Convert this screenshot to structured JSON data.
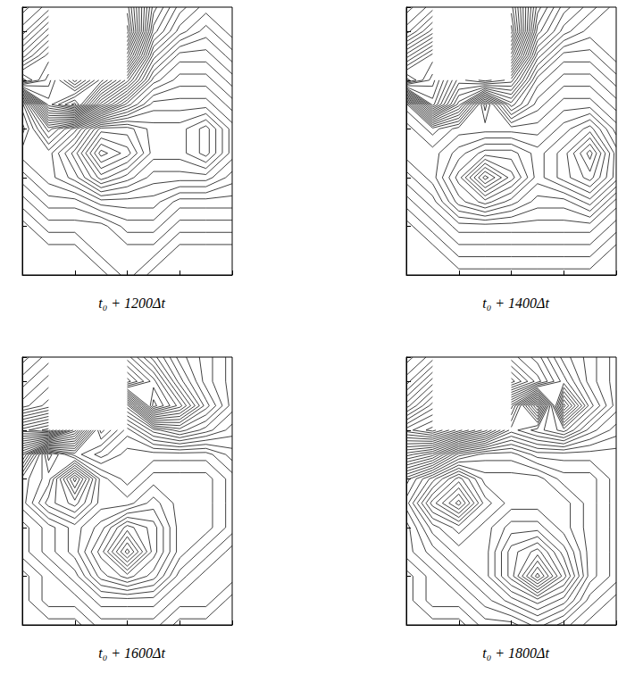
{
  "chart_data": [
    {
      "type": "contour",
      "title": "t₀ + 1200Δt",
      "xlim": [
        0,
        8
      ],
      "ylim": [
        0,
        11
      ],
      "xticks": [
        0,
        2,
        4,
        6,
        8
      ],
      "yticks": [
        0,
        2,
        4,
        6,
        8,
        10
      ],
      "tick_labels": false,
      "color": "#111111",
      "levels": [
        -7.75,
        -7.25,
        -6.75,
        -6.25,
        -5.75,
        -5.25,
        -4.75,
        -4.25,
        -3.75,
        -3.25,
        -2.75,
        -2.25,
        -1.75,
        -1.25,
        -0.75,
        -0.25,
        0.25,
        0.75,
        1.25,
        1.75,
        2.25,
        2.75,
        3.25,
        3.75,
        4.25,
        4.75,
        5.25,
        5.75,
        6.25,
        6.75,
        7.25,
        7.75,
        8.25,
        8.75,
        9.25,
        9.75
      ],
      "x": [
        0,
        1,
        2,
        3,
        4,
        5,
        6,
        7,
        8
      ],
      "y": [
        11,
        10,
        9,
        8,
        7,
        6,
        5,
        4,
        3,
        2,
        1,
        0
      ],
      "z": [
        [
          1,
          2,
          null,
          null,
          8,
          3,
          1,
          0,
          0
        ],
        [
          2,
          4,
          null,
          null,
          9,
          2,
          0,
          -1,
          0
        ],
        [
          4,
          6,
          null,
          null,
          6,
          0,
          -2,
          -2,
          -1
        ],
        [
          7,
          5,
          2,
          5,
          2,
          -2,
          -3,
          -3,
          -2
        ],
        [
          -3,
          4,
          6,
          1,
          -2,
          -4,
          -4,
          -4,
          -3
        ],
        [
          -4,
          -1,
          -3,
          -6,
          -6,
          -5,
          -5,
          -6,
          -4
        ],
        [
          -3,
          -3,
          -5,
          -8,
          -7,
          -5,
          -5,
          -6,
          -4
        ],
        [
          -2,
          -3,
          -4,
          -6,
          -5,
          -4,
          -4,
          -4,
          -3
        ],
        [
          -1,
          -2,
          -2,
          -3,
          -3,
          -3,
          -2,
          -2,
          -2
        ],
        [
          0,
          -1,
          -1,
          -1,
          -2,
          -2,
          -1,
          -1,
          -1
        ],
        [
          0,
          0,
          0,
          -1,
          -1,
          -1,
          0,
          0,
          0
        ],
        [
          0,
          0,
          0,
          0,
          -1,
          0,
          0,
          0,
          0
        ]
      ]
    },
    {
      "type": "contour",
      "title": "t₀ + 1400Δt",
      "xlim": [
        0,
        8
      ],
      "ylim": [
        0,
        11
      ],
      "xticks": [
        0,
        2,
        4,
        6,
        8
      ],
      "yticks": [
        0,
        2,
        4,
        6,
        8,
        10
      ],
      "tick_labels": false,
      "color": "#111111",
      "levels": [
        -7.75,
        -7.25,
        -6.75,
        -6.25,
        -5.75,
        -5.25,
        -4.75,
        -4.25,
        -3.75,
        -3.25,
        -2.75,
        -2.25,
        -1.75,
        -1.25,
        -0.75,
        -0.25,
        0.25,
        0.75,
        1.25,
        1.75,
        2.25,
        2.75,
        3.25,
        3.75,
        4.25,
        4.75,
        5.25,
        5.75,
        6.25,
        6.75,
        7.25,
        7.75,
        8.25,
        8.75,
        9.25,
        9.75
      ],
      "x": [
        0,
        1,
        2,
        3,
        4,
        5,
        6,
        7,
        8
      ],
      "y": [
        11,
        10,
        9,
        8,
        7,
        6,
        5,
        4,
        3,
        2,
        1,
        0
      ],
      "z": [
        [
          1,
          2,
          null,
          null,
          9,
          4,
          2,
          1,
          0
        ],
        [
          2,
          4,
          null,
          null,
          10,
          3,
          1,
          0,
          0
        ],
        [
          5,
          7,
          null,
          null,
          7,
          1,
          -1,
          -1,
          0
        ],
        [
          8,
          6,
          3,
          4,
          3,
          -1,
          -2,
          -2,
          -1
        ],
        [
          -2,
          5,
          1,
          -4,
          0,
          -2,
          -3,
          -3,
          -2
        ],
        [
          -3,
          -2,
          -3,
          -3,
          -3,
          -3,
          -4,
          -5,
          -3
        ],
        [
          -3,
          -3,
          -4,
          -5,
          -5,
          -4,
          -5,
          -7,
          -4
        ],
        [
          -2,
          -3,
          -5,
          -8,
          -6,
          -4,
          -5,
          -6,
          -4
        ],
        [
          -1,
          -2,
          -4,
          -5,
          -4,
          -3,
          -3,
          -4,
          -2
        ],
        [
          0,
          -1,
          -2,
          -2,
          -2,
          -2,
          -2,
          -2,
          -1
        ],
        [
          0,
          0,
          -1,
          -1,
          -1,
          -1,
          -1,
          -1,
          0
        ],
        [
          0,
          0,
          0,
          0,
          0,
          0,
          0,
          0,
          0
        ]
      ]
    },
    {
      "type": "contour",
      "title": "t₀ + 1600Δt",
      "xlim": [
        0,
        8
      ],
      "ylim": [
        0,
        11
      ],
      "xticks": [
        0,
        2,
        4,
        6,
        8
      ],
      "yticks": [
        0,
        2,
        4,
        6,
        8,
        10
      ],
      "tick_labels": false,
      "color": "#111111",
      "levels": [
        -7.75,
        -7.25,
        -6.75,
        -6.25,
        -5.75,
        -5.25,
        -4.75,
        -4.25,
        -3.75,
        -3.25,
        -2.75,
        -2.25,
        -1.75,
        -1.25,
        -0.75,
        -0.25,
        0.25,
        0.75,
        1.25,
        1.75,
        2.25,
        2.75,
        3.25,
        3.75,
        4.25,
        4.75,
        5.25,
        5.75,
        6.25,
        6.75,
        7.25,
        7.75,
        8.25,
        8.75,
        9.25,
        9.75
      ],
      "x": [
        0,
        1,
        2,
        3,
        4,
        5,
        6,
        7,
        8
      ],
      "y": [
        11,
        10,
        9,
        8,
        7,
        6,
        5,
        4,
        3,
        2,
        1,
        0
      ],
      "z": [
        [
          0,
          1,
          null,
          null,
          7,
          5,
          3,
          2,
          1
        ],
        [
          1,
          2,
          null,
          null,
          9,
          7,
          4,
          2,
          1
        ],
        [
          2,
          3,
          null,
          null,
          2,
          8,
          6,
          3,
          1
        ],
        [
          6,
          7,
          3,
          -3,
          -1,
          1,
          2,
          1,
          0
        ],
        [
          1,
          -4,
          -2,
          -1,
          -2,
          -2,
          -2,
          -2,
          -1
        ],
        [
          -2,
          -3,
          -7,
          -3,
          -2,
          -3,
          -3,
          -3,
          -2
        ],
        [
          -2,
          -4,
          -5,
          -3,
          -3,
          -4,
          -3,
          -3,
          -2
        ],
        [
          -1,
          -2,
          -3,
          -4,
          -6,
          -5,
          -3,
          -3,
          -2
        ],
        [
          -1,
          -2,
          -3,
          -5,
          -8,
          -5,
          -3,
          -2,
          -1
        ],
        [
          0,
          -1,
          -2,
          -4,
          -5,
          -4,
          -2,
          -1,
          -1
        ],
        [
          0,
          -1,
          -1,
          -2,
          -2,
          -2,
          -1,
          -1,
          0
        ],
        [
          0,
          0,
          0,
          -1,
          -1,
          -1,
          0,
          0,
          0
        ]
      ]
    },
    {
      "type": "contour",
      "title": "t₀ + 1800Δt",
      "xlim": [
        0,
        8
      ],
      "ylim": [
        0,
        11
      ],
      "xticks": [
        0,
        2,
        4,
        6,
        8
      ],
      "yticks": [
        0,
        2,
        4,
        6,
        8,
        10
      ],
      "tick_labels": false,
      "color": "#111111",
      "levels": [
        -7.75,
        -7.25,
        -6.75,
        -6.25,
        -5.75,
        -5.25,
        -4.75,
        -4.25,
        -3.75,
        -3.25,
        -2.75,
        -2.25,
        -1.75,
        -1.25,
        -0.75,
        -0.25,
        0.25,
        0.75,
        1.25,
        1.75,
        2.25,
        2.75,
        3.25,
        3.75,
        4.25,
        4.75,
        5.25,
        5.75,
        6.25,
        6.75,
        7.25,
        7.75,
        8.25,
        8.75,
        9.25,
        9.75
      ],
      "x": [
        0,
        1,
        2,
        3,
        4,
        5,
        6,
        7,
        8
      ],
      "y": [
        11,
        10,
        9,
        8,
        7,
        6,
        5,
        4,
        3,
        2,
        1,
        0
      ],
      "z": [
        [
          1,
          2,
          null,
          null,
          6,
          5,
          3,
          2,
          1
        ],
        [
          2,
          4,
          null,
          null,
          8,
          6,
          4,
          2,
          1
        ],
        [
          4,
          6,
          null,
          null,
          3,
          -2,
          7,
          3,
          1
        ],
        [
          7,
          8,
          6,
          4,
          1,
          2,
          3,
          1,
          0
        ],
        [
          3,
          2,
          -1,
          -2,
          -2,
          -1,
          -1,
          -1,
          -1
        ],
        [
          -1,
          -3,
          -5,
          -3,
          -3,
          -3,
          -2,
          -2,
          -1
        ],
        [
          -2,
          -5,
          -7,
          -4,
          -3,
          -3,
          -3,
          -2,
          -1
        ],
        [
          -1,
          -3,
          -4,
          -3,
          -4,
          -4,
          -3,
          -2,
          -1
        ],
        [
          -1,
          -2,
          -3,
          -3,
          -5,
          -6,
          -4,
          -2,
          -1
        ],
        [
          0,
          -1,
          -2,
          -3,
          -5,
          -8,
          -5,
          -2,
          -1
        ],
        [
          0,
          -1,
          -1,
          -2,
          -3,
          -4,
          -3,
          -1,
          0
        ],
        [
          0,
          0,
          0,
          -1,
          -1,
          -2,
          -1,
          0,
          0
        ]
      ]
    }
  ]
}
